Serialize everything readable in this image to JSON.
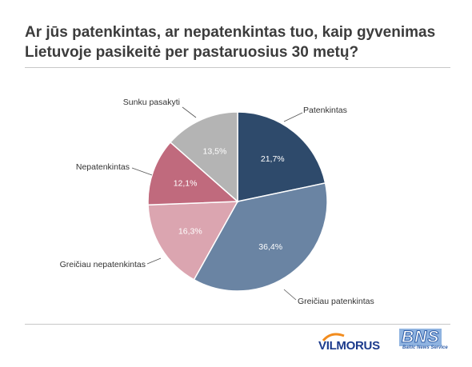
{
  "title_lines": [
    "Ar jūs patenkintas, ar nepatenkintas tuo, kaip gyvenimas",
    "Lietuvoje pasikeitė per pastaruosius 30 metų?"
  ],
  "logos": {
    "vilmorus": "VILMORUS",
    "bns": "BNS",
    "bns_sub": "Baltic News Service"
  },
  "chart_data": {
    "type": "pie",
    "title": "Ar jūs patenkintas, ar nepatenkintas tuo, kaip gyvenimas Lietuvoje pasikeitė per pastaruosius 30 metų?",
    "slices": [
      {
        "label": "Patenkintas",
        "value": 21.7,
        "value_label": "21,7%",
        "color": "#2e4a6b",
        "text_color": "#ffffff"
      },
      {
        "label": "Greičiau patenkintas",
        "value": 36.4,
        "value_label": "36,4%",
        "color": "#6a84a3",
        "text_color": "#ffffff"
      },
      {
        "label": "Greičiau nepatenkintas",
        "value": 16.3,
        "value_label": "16,3%",
        "color": "#dba5b0",
        "text_color": "#ffffff"
      },
      {
        "label": "Nepatenkintas",
        "value": 12.1,
        "value_label": "12,1%",
        "color": "#c06a7d",
        "text_color": "#ffffff"
      },
      {
        "label": "Sunku pasakyti",
        "value": 13.5,
        "value_label": "13,5%",
        "color": "#b4b4b4",
        "text_color": "#ffffff"
      }
    ],
    "start_angle_deg": 0,
    "direction": "clockwise"
  }
}
